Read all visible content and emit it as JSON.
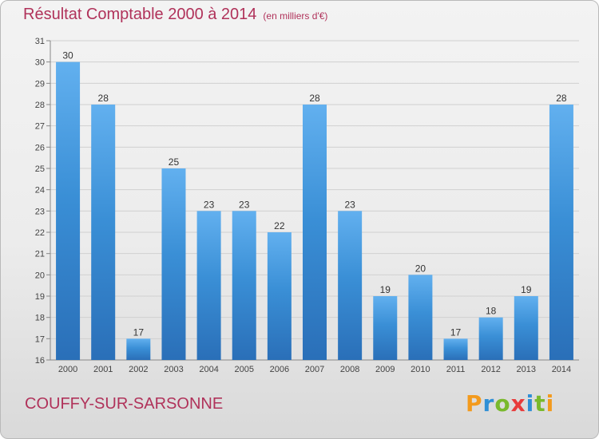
{
  "chart_data": {
    "type": "bar",
    "title": "Résultat Comptable 2000 à 2014",
    "subtitle": "(en milliers d'€)",
    "categories": [
      "2000",
      "2001",
      "2002",
      "2003",
      "2004",
      "2005",
      "2006",
      "2007",
      "2008",
      "2009",
      "2010",
      "2011",
      "2012",
      "2013",
      "2014"
    ],
    "values": [
      30,
      28,
      17,
      25,
      23,
      23,
      22,
      28,
      23,
      19,
      20,
      17,
      18,
      19,
      28
    ],
    "ylim": [
      16,
      31
    ],
    "yticks": [
      16,
      17,
      18,
      19,
      20,
      21,
      22,
      23,
      24,
      25,
      26,
      27,
      28,
      29,
      30,
      31
    ],
    "xlabel": "",
    "ylabel": "",
    "grid": true,
    "bar_color": "#3a8fd6",
    "bar_color_light": "#62b0ef",
    "bar_color_dark": "#2a6fb8"
  },
  "footer": {
    "location": "COUFFY-SUR-SARSONNE"
  },
  "logo": {
    "letters": [
      "P",
      "r",
      "o",
      "x",
      "i",
      "t",
      "i"
    ],
    "colors": [
      "#f39a1d",
      "#2f8fd6",
      "#79b92c",
      "#e83c3c",
      "#2f8fd6",
      "#79b92c",
      "#f39a1d"
    ]
  },
  "colors": {
    "accent": "#b0325a"
  }
}
